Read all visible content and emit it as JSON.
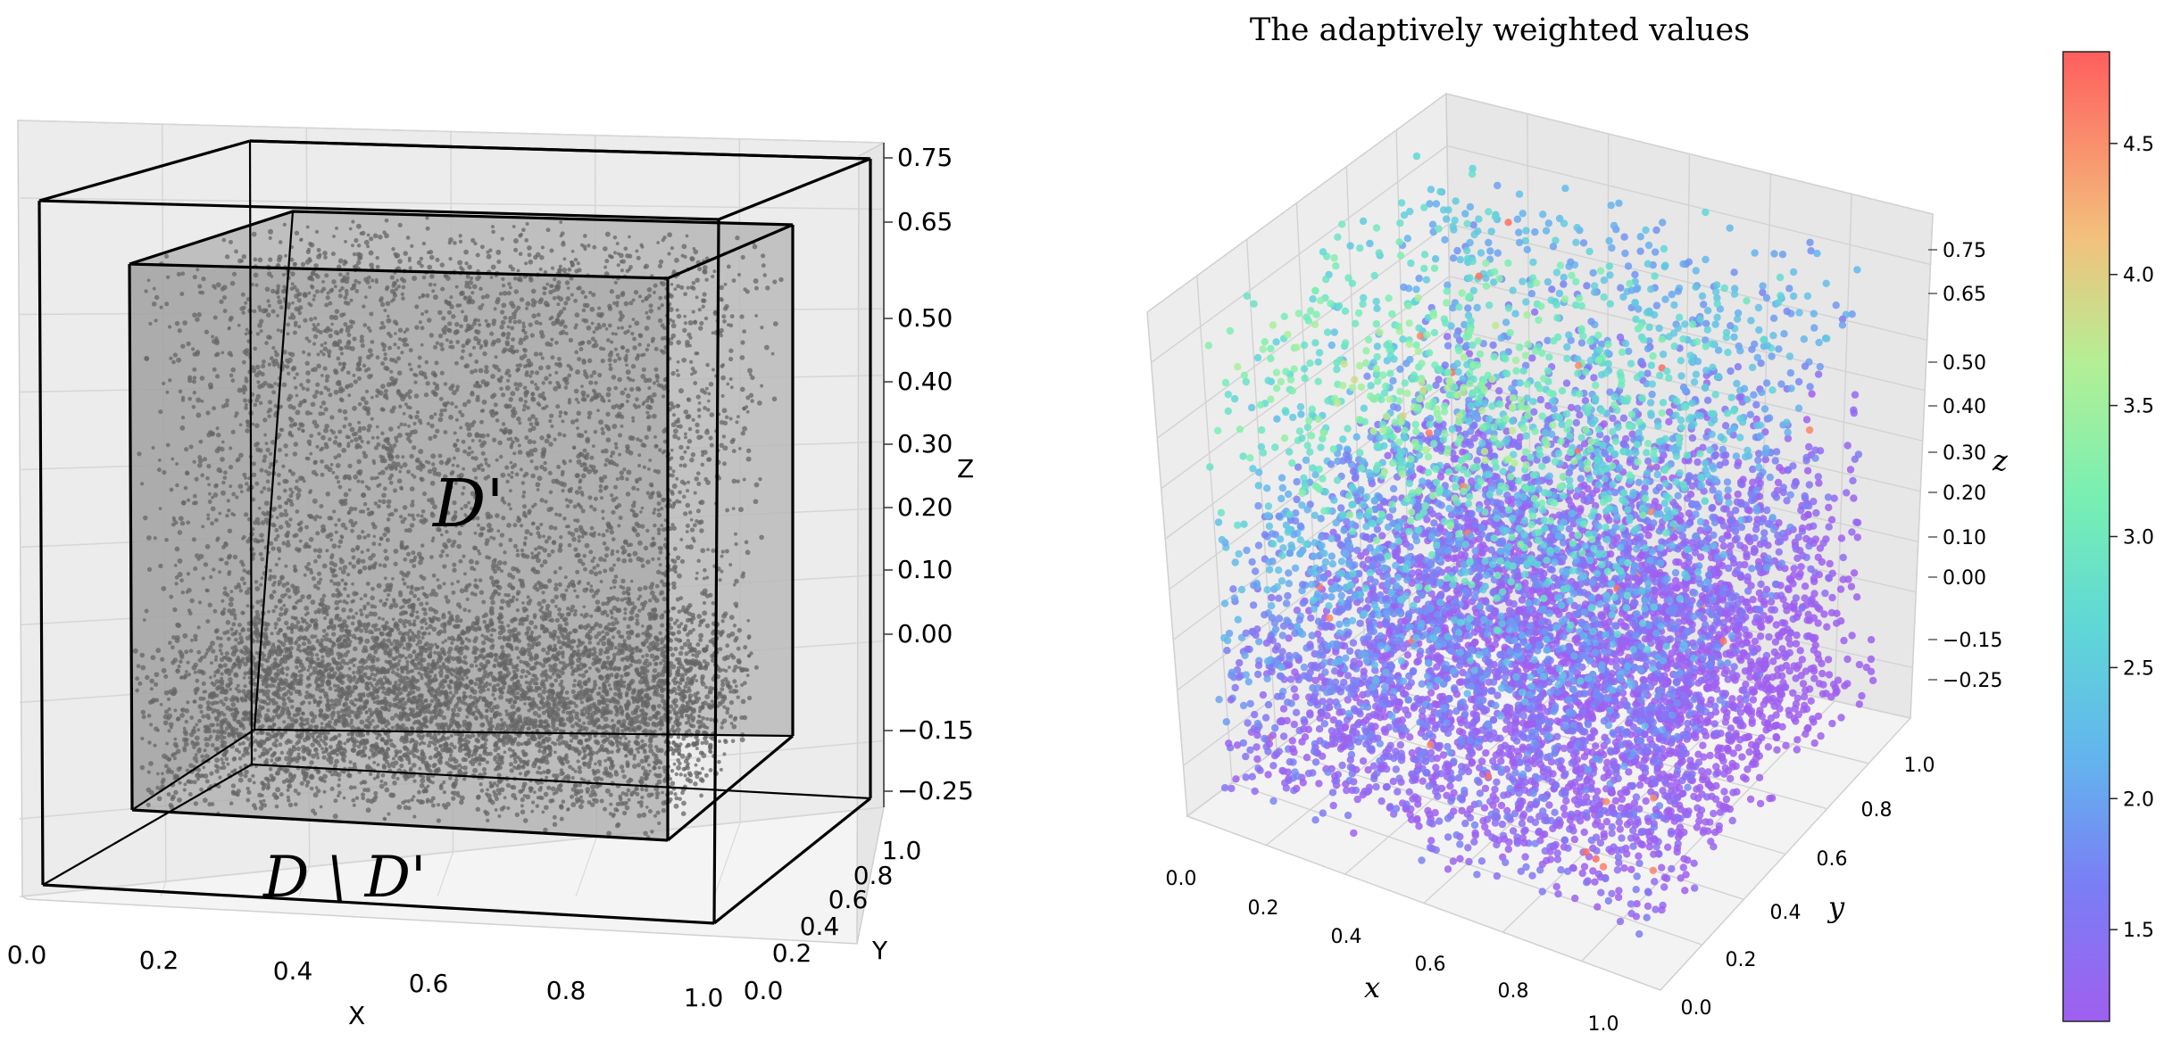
{
  "colors": {
    "pane_fill": "#eeeeee",
    "pane_edge": "#cccccc",
    "grid": "#d4d4d4",
    "box_line": "#000000",
    "inner_box_fill": "#aaaaaa",
    "left_points": "#666666",
    "axis_text": "#000000"
  },
  "chart_data": [
    {
      "type": "scatter",
      "title": "",
      "projection": "3d",
      "xlabel": "X",
      "ylabel": "Y",
      "zlabel": "Z",
      "xlim": [
        0.0,
        1.0
      ],
      "ylim": [
        0.0,
        1.0
      ],
      "zlim": [
        -0.25,
        0.75
      ],
      "xticks": [
        "0.0",
        "0.2",
        "0.4",
        "0.6",
        "0.8",
        "1.0"
      ],
      "yticks": [
        "0.0",
        "0.2",
        "0.4",
        "0.6",
        "0.8",
        "1.0"
      ],
      "zticks": [
        "-0.25",
        "-0.15",
        "0.00",
        "0.10",
        "0.20",
        "0.30",
        "0.40",
        "0.50",
        "0.65",
        "0.75"
      ],
      "zticks_display": [
        "−0.25",
        "−0.15",
        "0.00",
        "0.10",
        "0.20",
        "0.30",
        "0.40",
        "0.50",
        "0.65",
        "0.75"
      ],
      "outer_region": {
        "label": "D \\ D'",
        "x": [
          0.0,
          1.0
        ],
        "y": [
          0.0,
          1.0
        ],
        "z": [
          -0.25,
          0.75
        ]
      },
      "inner_region": {
        "label": "D'",
        "x": [
          0.2,
          0.8
        ],
        "y": [
          0.2,
          0.8
        ],
        "z": [
          -0.15,
          0.65
        ]
      },
      "point_distribution": "uniform over inner region D', denser near the bottom (z below 0.00)",
      "point_color": "#666666"
    },
    {
      "type": "scatter",
      "title": "The adaptively weighted values",
      "projection": "3d",
      "xlabel": "x",
      "ylabel": "y",
      "zlabel": "z",
      "xlim": [
        0.0,
        1.0
      ],
      "ylim": [
        0.0,
        1.0
      ],
      "zlim": [
        -0.25,
        0.75
      ],
      "xticks": [
        "0.0",
        "0.2",
        "0.4",
        "0.6",
        "0.8",
        "1.0"
      ],
      "yticks": [
        "0.0",
        "0.2",
        "0.4",
        "0.6",
        "0.8",
        "1.0"
      ],
      "zticks": [
        "-0.25",
        "-0.15",
        "0.00",
        "0.10",
        "0.20",
        "0.30",
        "0.40",
        "0.50",
        "0.65",
        "0.75"
      ],
      "zticks_display": [
        "−0.25",
        "−0.15",
        "0.00",
        "0.10",
        "0.20",
        "0.30",
        "0.40",
        "0.50",
        "0.65",
        "0.75"
      ],
      "colormap": "rainbow",
      "colorbar": {
        "range": [
          1.15,
          4.85
        ],
        "ticks": [
          1.5,
          2.0,
          2.5,
          3.0,
          3.5,
          4.0,
          4.5
        ],
        "tick_labels": [
          "1.5",
          "2.0",
          "2.5",
          "3.0",
          "3.5",
          "4.0",
          "4.5"
        ]
      },
      "value_trend": "low values (~1.3-2.0) in lower region and toward high y; higher values (~2.5-3.5) in the upper-middle region; a few outliers near 4.5 along edges"
    }
  ]
}
